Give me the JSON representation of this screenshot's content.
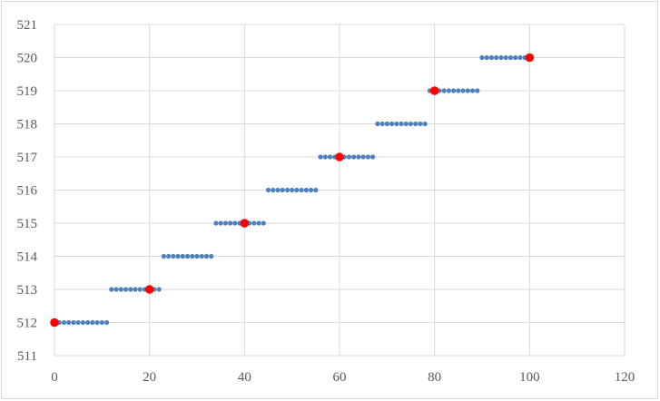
{
  "chart_data": {
    "type": "scatter",
    "title": "",
    "xlabel": "",
    "ylabel": "",
    "xlim": [
      0,
      120
    ],
    "ylim": [
      511,
      521
    ],
    "x_ticks": [
      0,
      20,
      40,
      60,
      80,
      100,
      120
    ],
    "y_ticks": [
      511,
      512,
      513,
      514,
      515,
      516,
      517,
      518,
      519,
      520,
      521
    ],
    "grid": true,
    "legend": "none",
    "series": [
      {
        "color": "#4f81bd",
        "marker": "small-circle",
        "points": [
          [
            0,
            512
          ],
          [
            1,
            512
          ],
          [
            2,
            512
          ],
          [
            3,
            512
          ],
          [
            4,
            512
          ],
          [
            5,
            512
          ],
          [
            6,
            512
          ],
          [
            7,
            512
          ],
          [
            8,
            512
          ],
          [
            9,
            512
          ],
          [
            10,
            512
          ],
          [
            11,
            512
          ],
          [
            12,
            513
          ],
          [
            13,
            513
          ],
          [
            14,
            513
          ],
          [
            15,
            513
          ],
          [
            16,
            513
          ],
          [
            17,
            513
          ],
          [
            18,
            513
          ],
          [
            19,
            513
          ],
          [
            20,
            513
          ],
          [
            21,
            513
          ],
          [
            22,
            513
          ],
          [
            23,
            514
          ],
          [
            24,
            514
          ],
          [
            25,
            514
          ],
          [
            26,
            514
          ],
          [
            27,
            514
          ],
          [
            28,
            514
          ],
          [
            29,
            514
          ],
          [
            30,
            514
          ],
          [
            31,
            514
          ],
          [
            32,
            514
          ],
          [
            33,
            514
          ],
          [
            34,
            515
          ],
          [
            35,
            515
          ],
          [
            36,
            515
          ],
          [
            37,
            515
          ],
          [
            38,
            515
          ],
          [
            39,
            515
          ],
          [
            40,
            515
          ],
          [
            41,
            515
          ],
          [
            42,
            515
          ],
          [
            43,
            515
          ],
          [
            44,
            515
          ],
          [
            45,
            516
          ],
          [
            46,
            516
          ],
          [
            47,
            516
          ],
          [
            48,
            516
          ],
          [
            49,
            516
          ],
          [
            50,
            516
          ],
          [
            51,
            516
          ],
          [
            52,
            516
          ],
          [
            53,
            516
          ],
          [
            54,
            516
          ],
          [
            55,
            516
          ],
          [
            56,
            517
          ],
          [
            57,
            517
          ],
          [
            58,
            517
          ],
          [
            59,
            517
          ],
          [
            60,
            517
          ],
          [
            61,
            517
          ],
          [
            62,
            517
          ],
          [
            63,
            517
          ],
          [
            64,
            517
          ],
          [
            65,
            517
          ],
          [
            66,
            517
          ],
          [
            67,
            517
          ],
          [
            68,
            518
          ],
          [
            69,
            518
          ],
          [
            70,
            518
          ],
          [
            71,
            518
          ],
          [
            72,
            518
          ],
          [
            73,
            518
          ],
          [
            74,
            518
          ],
          [
            75,
            518
          ],
          [
            76,
            518
          ],
          [
            77,
            518
          ],
          [
            78,
            518
          ],
          [
            79,
            519
          ],
          [
            80,
            519
          ],
          [
            81,
            519
          ],
          [
            82,
            519
          ],
          [
            83,
            519
          ],
          [
            84,
            519
          ],
          [
            85,
            519
          ],
          [
            86,
            519
          ],
          [
            87,
            519
          ],
          [
            88,
            519
          ],
          [
            89,
            519
          ],
          [
            90,
            520
          ],
          [
            91,
            520
          ],
          [
            92,
            520
          ],
          [
            93,
            520
          ],
          [
            94,
            520
          ],
          [
            95,
            520
          ],
          [
            96,
            520
          ],
          [
            97,
            520
          ],
          [
            98,
            520
          ],
          [
            99,
            520
          ],
          [
            100,
            520
          ]
        ]
      },
      {
        "color": "#ff0000",
        "marker": "large-circle",
        "points": [
          [
            0,
            512
          ],
          [
            20,
            513
          ],
          [
            40,
            515
          ],
          [
            60,
            517
          ],
          [
            80,
            519
          ],
          [
            100,
            520
          ]
        ]
      }
    ]
  }
}
